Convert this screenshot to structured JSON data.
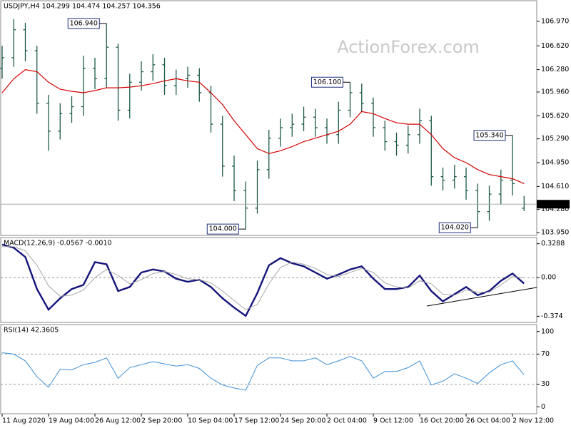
{
  "chart_data": [
    {
      "type": "ohlc",
      "title": "USDJPY,H4  104.299 104.474 104.257 104.356",
      "watermark": "ActionForex.com",
      "color": "#1d5a48",
      "xlim": [
        0,
        46.09
      ],
      "ylim": [
        103.93,
        107.245
      ],
      "yticks": [
        {
          "value": 103.95,
          "label": "103.950"
        },
        {
          "value": 104.28,
          "label": "104.280"
        },
        {
          "value": 104.61,
          "label": "104.610"
        },
        {
          "value": 104.95,
          "label": "104.950"
        },
        {
          "value": 105.29,
          "label": "105.290"
        },
        {
          "value": 105.62,
          "label": "105.620"
        },
        {
          "value": 105.96,
          "label": "105.960"
        },
        {
          "value": 106.28,
          "label": "106.280"
        },
        {
          "value": 106.62,
          "label": "106.620"
        },
        {
          "value": 106.97,
          "label": "106.970"
        }
      ],
      "open": [
        106.3,
        106.45,
        106.85,
        106.55,
        105.8,
        105.4,
        105.65,
        105.75,
        106.3,
        106.15,
        106.6,
        105.7,
        106.1,
        106.25,
        106.35,
        106.05,
        106.15,
        106.2,
        105.95,
        105.5,
        104.9,
        104.55,
        104.3,
        104.85,
        105.3,
        105.45,
        105.5,
        105.6,
        105.45,
        105.35,
        105.7,
        105.95,
        105.8,
        105.45,
        105.25,
        105.2,
        105.35,
        105.55,
        104.75,
        104.7,
        104.75,
        104.55,
        104.25,
        104.5,
        104.7,
        104.299
      ],
      "high": [
        106.62,
        107.0,
        106.95,
        106.62,
        105.92,
        105.8,
        105.9,
        106.48,
        106.45,
        106.94,
        106.65,
        106.22,
        106.4,
        106.5,
        106.45,
        106.28,
        106.32,
        106.3,
        106.05,
        105.62,
        105.05,
        104.68,
        104.98,
        105.42,
        105.58,
        105.65,
        105.75,
        105.72,
        105.58,
        105.82,
        106.1,
        106.08,
        105.88,
        105.55,
        105.38,
        105.48,
        105.72,
        105.62,
        104.88,
        104.92,
        104.88,
        104.65,
        104.62,
        104.85,
        105.34,
        104.474
      ],
      "low": [
        106.15,
        106.32,
        106.4,
        105.65,
        105.12,
        105.28,
        105.52,
        105.62,
        106.0,
        106.02,
        105.55,
        105.58,
        105.98,
        106.12,
        105.92,
        105.92,
        106.02,
        105.82,
        105.38,
        104.75,
        104.4,
        104.0,
        104.22,
        104.72,
        105.18,
        105.32,
        105.4,
        105.32,
        105.22,
        105.22,
        105.6,
        105.68,
        105.32,
        105.12,
        105.05,
        105.08,
        105.22,
        104.62,
        104.55,
        104.58,
        104.42,
        104.02,
        104.12,
        104.35,
        104.48,
        104.257
      ],
      "close": [
        106.45,
        106.85,
        106.55,
        105.8,
        105.4,
        105.65,
        105.75,
        106.3,
        106.15,
        106.6,
        105.7,
        106.1,
        106.25,
        106.35,
        106.05,
        106.15,
        106.2,
        105.95,
        105.5,
        104.9,
        104.55,
        104.3,
        104.85,
        105.3,
        105.45,
        105.5,
        105.6,
        105.45,
        105.35,
        105.7,
        105.95,
        105.8,
        105.45,
        105.25,
        105.2,
        105.35,
        105.55,
        104.75,
        104.7,
        104.75,
        104.55,
        104.25,
        104.5,
        104.7,
        104.65,
        104.356
      ],
      "overlay": {
        "color": "#d40000",
        "values": [
          105.95,
          106.15,
          106.28,
          106.25,
          106.1,
          106.0,
          105.97,
          105.95,
          105.98,
          106.02,
          106.02,
          106.03,
          106.05,
          106.08,
          106.12,
          106.15,
          106.12,
          106.1,
          105.95,
          105.78,
          105.55,
          105.35,
          105.15,
          105.08,
          105.12,
          105.18,
          105.25,
          105.3,
          105.35,
          105.4,
          105.5,
          105.68,
          105.65,
          105.58,
          105.52,
          105.5,
          105.5,
          105.35,
          105.15,
          105.02,
          104.95,
          104.85,
          104.78,
          104.75,
          104.72,
          104.65
        ]
      },
      "annotations": [
        {
          "index": 9,
          "value": 106.94,
          "label": "106.940"
        },
        {
          "index": 30,
          "value": 106.1,
          "label": "106.100"
        },
        {
          "index": 44,
          "value": 105.34,
          "label": "105.340"
        },
        {
          "index": 21,
          "value": 104.0,
          "label": "104.000"
        },
        {
          "index": 41,
          "value": 104.02,
          "label": "104.020"
        }
      ]
    },
    {
      "type": "line",
      "title": "MACD(12,26,9) -0.0567 -0.0010",
      "xlim": [
        0,
        46.09
      ],
      "ylim": [
        -0.42,
        0.368
      ],
      "grid": true,
      "yticks": [
        -0.374,
        {
          "value": 0,
          "label": "0.00"
        },
        0.3288
      ],
      "series": [
        {
          "color": "#14147a",
          "values": [
            0.32,
            0.29,
            0.2,
            -0.11,
            -0.31,
            -0.2,
            -0.11,
            -0.07,
            0.15,
            0.13,
            -0.13,
            -0.09,
            0.05,
            0.08,
            0.06,
            -0.01,
            -0.04,
            -0.02,
            -0.09,
            -0.2,
            -0.29,
            -0.37,
            -0.15,
            0.12,
            0.19,
            0.14,
            0.11,
            0.05,
            -0.01,
            0.03,
            0.08,
            0.11,
            -0.01,
            -0.11,
            -0.11,
            -0.09,
            0.02,
            -0.13,
            -0.23,
            -0.16,
            -0.09,
            -0.17,
            -0.13,
            -0.03,
            0.04,
            -0.0567
          ]
        },
        {
          "color": "#a8a8a8",
          "values": [
            0.3,
            0.3,
            0.26,
            0.12,
            -0.08,
            -0.18,
            -0.17,
            -0.12,
            0.0,
            0.08,
            0.02,
            -0.06,
            -0.02,
            0.04,
            0.06,
            0.03,
            -0.01,
            -0.02,
            -0.05,
            -0.13,
            -0.22,
            -0.31,
            -0.26,
            -0.06,
            0.1,
            0.15,
            0.13,
            0.09,
            0.03,
            0.01,
            0.05,
            0.09,
            0.05,
            -0.05,
            -0.09,
            -0.1,
            -0.03,
            -0.06,
            -0.16,
            -0.17,
            -0.12,
            -0.14,
            -0.14,
            -0.07,
            0.01,
            -0.001
          ]
        }
      ]
    },
    {
      "type": "line",
      "title": "RSI(14) 42.3605",
      "xlim": [
        0,
        46.09
      ],
      "ylim": [
        -7.3,
        106.4
      ],
      "grid": true,
      "yticks": [
        0,
        30,
        70,
        100
      ],
      "xticks": [
        {
          "value": 0,
          "label": "11 Aug 2020"
        },
        {
          "value": 4,
          "label": "19 Aug 04:00"
        },
        {
          "value": 8,
          "label": "26 Aug 12:00"
        },
        {
          "value": 12,
          "label": "2 Sep 20:00"
        },
        {
          "value": 16,
          "label": "10 Sep 04:00"
        },
        {
          "value": 20,
          "label": "17 Sep 12:00"
        },
        {
          "value": 24,
          "label": "24 Sep 20:00"
        },
        {
          "value": 28,
          "label": "2 Oct 04:00"
        },
        {
          "value": 32,
          "label": "9 Oct 12:00"
        },
        {
          "value": 36,
          "label": "16 Oct 20:00"
        },
        {
          "value": 40,
          "label": "26 Oct 04:00"
        },
        {
          "value": 44,
          "label": "2 Nov 12:00"
        }
      ],
      "series": [
        {
          "color": "#3d8fd6",
          "values": [
            71.8,
            70,
            61,
            40,
            26,
            50,
            49,
            56,
            59,
            65,
            38,
            52,
            56,
            60,
            57,
            54,
            56,
            51,
            38,
            29,
            25,
            22,
            55,
            65,
            65,
            61,
            61,
            65,
            56,
            61,
            67,
            61,
            38,
            47,
            47,
            52,
            61,
            29,
            34,
            44,
            38,
            31,
            45,
            56,
            61,
            42.3605
          ]
        }
      ]
    }
  ]
}
